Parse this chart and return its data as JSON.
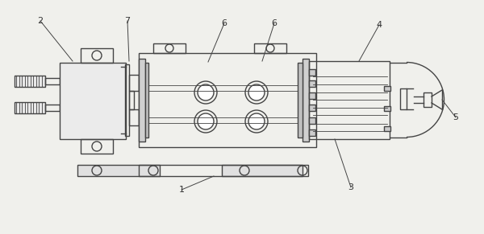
{
  "bg_color": "#f0f0ec",
  "line_color": "#444444",
  "lw": 1.0,
  "tlw": 0.6,
  "label_fs": 8,
  "label_color": "#333333"
}
